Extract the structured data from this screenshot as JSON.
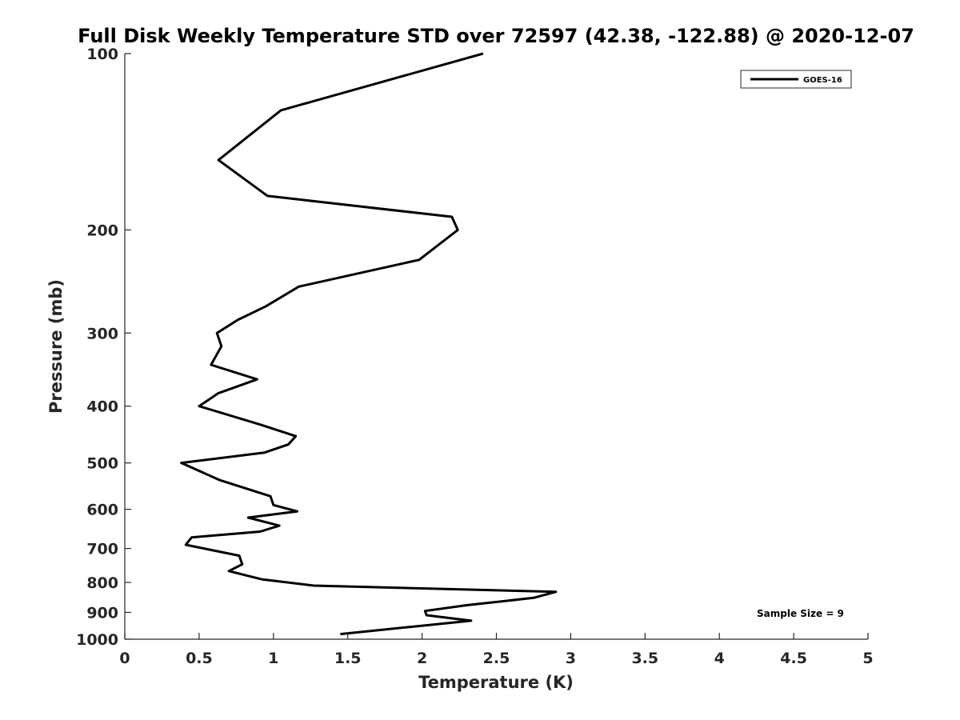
{
  "chart_data": {
    "type": "line",
    "title": "Full Disk Weekly Temperature STD over 72597 (42.38, -122.88) @ 2020-12-07",
    "xlabel": "Temperature (K)",
    "ylabel": "Pressure (mb)",
    "xlim": [
      0,
      5
    ],
    "ylim": [
      100,
      1000
    ],
    "y_scale": "log",
    "y_reversed": true,
    "x_ticks": [
      "0",
      "0.5",
      "1",
      "1.5",
      "2",
      "2.5",
      "3",
      "3.5",
      "4",
      "4.5",
      "5"
    ],
    "x_tick_values": [
      0,
      0.5,
      1,
      1.5,
      2,
      2.5,
      3,
      3.5,
      4,
      4.5,
      5
    ],
    "y_ticks": [
      "100",
      "200",
      "300",
      "400",
      "500",
      "600",
      "700",
      "800",
      "900",
      "1000"
    ],
    "y_tick_values": [
      100,
      200,
      300,
      400,
      500,
      600,
      700,
      800,
      900,
      1000
    ],
    "grid": false,
    "legend_position": "top-right",
    "series": [
      {
        "name": "GOES-16",
        "color": "#000000",
        "points": [
          [
            2.41,
            100
          ],
          [
            1.05,
            125
          ],
          [
            0.63,
            152
          ],
          [
            0.96,
            175
          ],
          [
            2.2,
            190
          ],
          [
            2.24,
            200
          ],
          [
            1.98,
            225
          ],
          [
            1.17,
            250
          ],
          [
            0.95,
            270
          ],
          [
            0.76,
            285
          ],
          [
            0.62,
            300
          ],
          [
            0.65,
            316
          ],
          [
            0.58,
            340
          ],
          [
            0.89,
            360
          ],
          [
            0.63,
            380
          ],
          [
            0.5,
            400
          ],
          [
            0.91,
            430
          ],
          [
            1.15,
            450
          ],
          [
            1.1,
            465
          ],
          [
            0.94,
            480
          ],
          [
            0.38,
            500
          ],
          [
            0.64,
            535
          ],
          [
            0.98,
            570
          ],
          [
            1.0,
            590
          ],
          [
            1.16,
            605
          ],
          [
            0.83,
            620
          ],
          [
            1.04,
            640
          ],
          [
            0.91,
            655
          ],
          [
            0.45,
            670
          ],
          [
            0.41,
            690
          ],
          [
            0.77,
            720
          ],
          [
            0.79,
            745
          ],
          [
            0.7,
            765
          ],
          [
            0.92,
            790
          ],
          [
            1.27,
            810
          ],
          [
            2.9,
            830
          ],
          [
            2.75,
            850
          ],
          [
            2.3,
            875
          ],
          [
            2.02,
            895
          ],
          [
            2.03,
            910
          ],
          [
            2.33,
            930
          ],
          [
            1.97,
            950
          ],
          [
            1.45,
            980
          ]
        ]
      }
    ],
    "annotations": [
      "Sample Size = 9"
    ]
  }
}
